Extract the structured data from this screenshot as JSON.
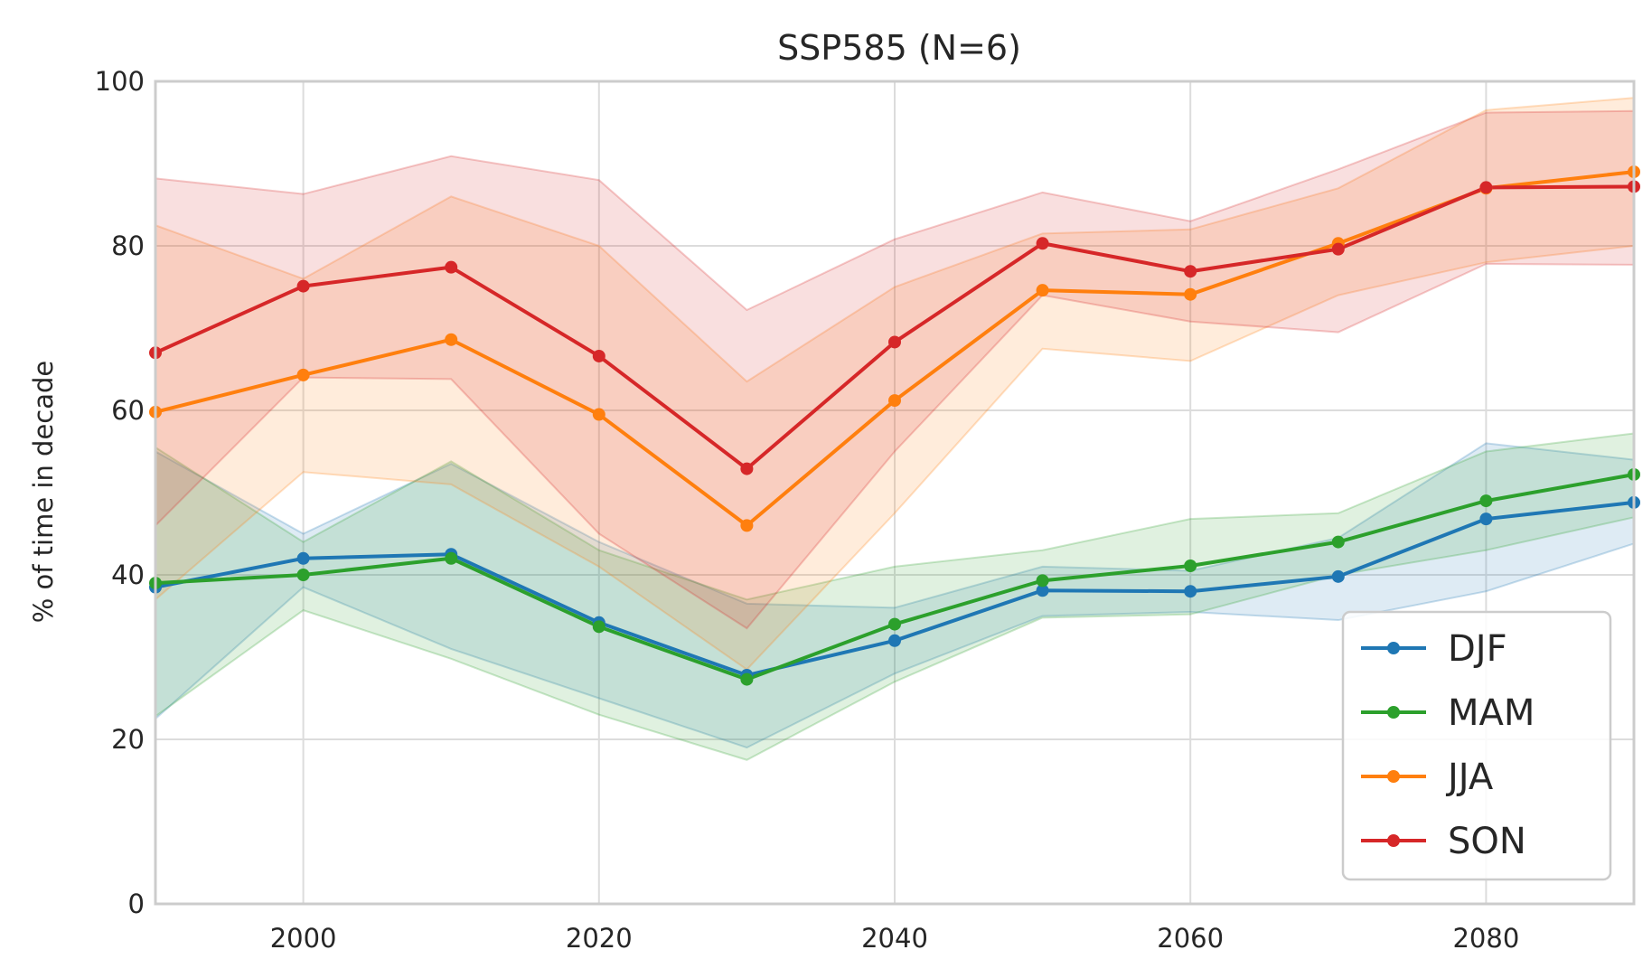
{
  "chart_data": {
    "type": "line",
    "title": "SSP585 (N=6)",
    "xlabel": "",
    "ylabel": "% of time in decade",
    "xlim": [
      1990,
      2090
    ],
    "ylim": [
      0,
      100
    ],
    "x_ticks": [
      2000,
      2020,
      2040,
      2060,
      2080
    ],
    "y_ticks": [
      0,
      20,
      40,
      60,
      80,
      100
    ],
    "grid": true,
    "legend_position": "bottom-right",
    "x": [
      1990,
      2000,
      2010,
      2020,
      2030,
      2040,
      2050,
      2060,
      2070,
      2080,
      2090
    ],
    "series": [
      {
        "name": "DJF",
        "color": "#1f77b4",
        "values": [
          38.5,
          42,
          42.5,
          34.2,
          27.8,
          32,
          38.1,
          38,
          39.8,
          46.8,
          48.8
        ],
        "band_upper": [
          55,
          45,
          53.5,
          44,
          36.5,
          36,
          41,
          40.5,
          44.5,
          56,
          54
        ],
        "band_lower": [
          22.5,
          38.5,
          31,
          25,
          19,
          28,
          35,
          35.5,
          34.5,
          38,
          43.8
        ]
      },
      {
        "name": "MAM",
        "color": "#2ca02c",
        "values": [
          39,
          40,
          42,
          33.7,
          27.3,
          34,
          39.3,
          41.1,
          44,
          49,
          52.2
        ],
        "band_upper": [
          55.5,
          44,
          53.8,
          43,
          37,
          41,
          43,
          46.8,
          47.5,
          55,
          57.2
        ],
        "band_lower": [
          22.8,
          35.7,
          29.8,
          23,
          17.5,
          27,
          34.8,
          35.2,
          40,
          43,
          47
        ]
      },
      {
        "name": "JJA",
        "color": "#ff7f0e",
        "values": [
          59.8,
          64.3,
          68.6,
          59.5,
          46,
          61.2,
          74.6,
          74.1,
          80.3,
          87,
          89
        ],
        "band_upper": [
          82.5,
          76,
          86,
          80,
          63.5,
          75,
          81.5,
          82,
          87,
          96.5,
          98
        ],
        "band_lower": [
          37,
          52.5,
          51,
          41,
          28.5,
          47.5,
          67.5,
          66,
          74,
          78,
          80
        ]
      },
      {
        "name": "SON",
        "color": "#d62728",
        "values": [
          67,
          75.1,
          77.4,
          66.6,
          52.9,
          68.3,
          80.3,
          76.9,
          79.6,
          87.1,
          87.2
        ],
        "band_upper": [
          88.2,
          86.3,
          90.9,
          88,
          72.2,
          80.8,
          86.5,
          83,
          89.3,
          96.2,
          96.4
        ],
        "band_lower": [
          46,
          64,
          63.8,
          45,
          33.5,
          55,
          74,
          70.8,
          69.5,
          77.8,
          77.7
        ]
      }
    ]
  }
}
